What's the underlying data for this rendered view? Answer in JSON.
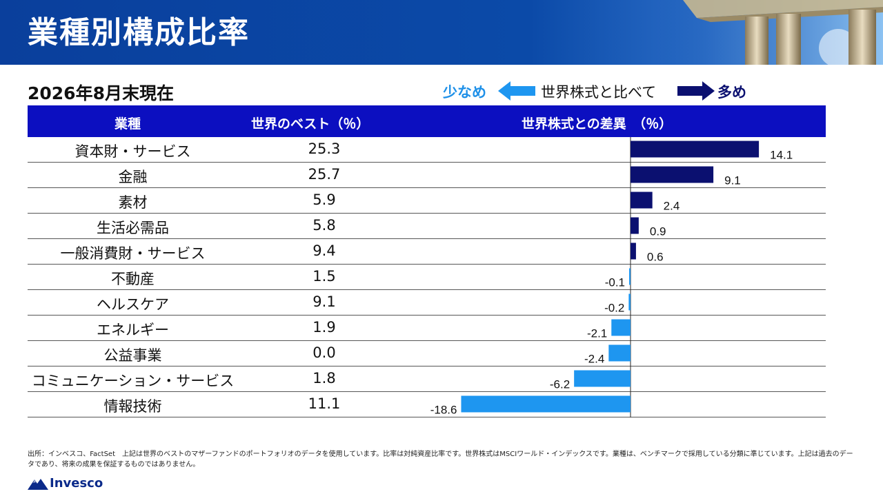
{
  "title": "業種別構成比率",
  "as_of": "2026年8月末現在",
  "legend": {
    "less": "少なめ",
    "middle": "世界株式と比べて",
    "more": "多め"
  },
  "table_header": {
    "sector": "業種",
    "weight": "世界のベスト（％）",
    "diff": "世界株式との差異　（％）"
  },
  "chart_data": {
    "type": "bar",
    "orientation": "horizontal",
    "categories": [
      "資本財・サービス",
      "金融",
      "素材",
      "生活必需品",
      "一般消費財・サービス",
      "不動産",
      "ヘルスケア",
      "エネルギー",
      "公益事業",
      "コミュニケーション・サービス",
      "情報技術"
    ],
    "weights": [
      "25.3",
      "25.7",
      "5.9",
      "5.8",
      "9.4",
      "1.5",
      "9.1",
      "1.9",
      "0.0",
      "1.8",
      "11.1"
    ],
    "series": [
      {
        "values": [
          14.1,
          9.1,
          2.4,
          0.9,
          0.6,
          -0.1,
          -0.2,
          -2.1,
          -2.4,
          -6.2,
          -18.6
        ]
      }
    ],
    "labels": [
      "14.1",
      "9.1",
      "2.4",
      "0.9",
      "0.6",
      "-0.1",
      "-0.2",
      "-2.1",
      "-2.4",
      "-6.2",
      "-18.6"
    ],
    "positive_color": "#0b1070",
    "negative_color": "#1e96f0"
  },
  "footnote": "出所：インベスコ、FactSet　上記は世界のベストのマザーファンドのポートフォリオのデータを使用しています。比率は対純資産比率です。世界株式はMSCIワールド・インデックスです。業種は、ベンチマークで採用している分類に準じています。上記は過去のデータであり、将来の成果を保証するものではありません。",
  "brand": "Invesco"
}
